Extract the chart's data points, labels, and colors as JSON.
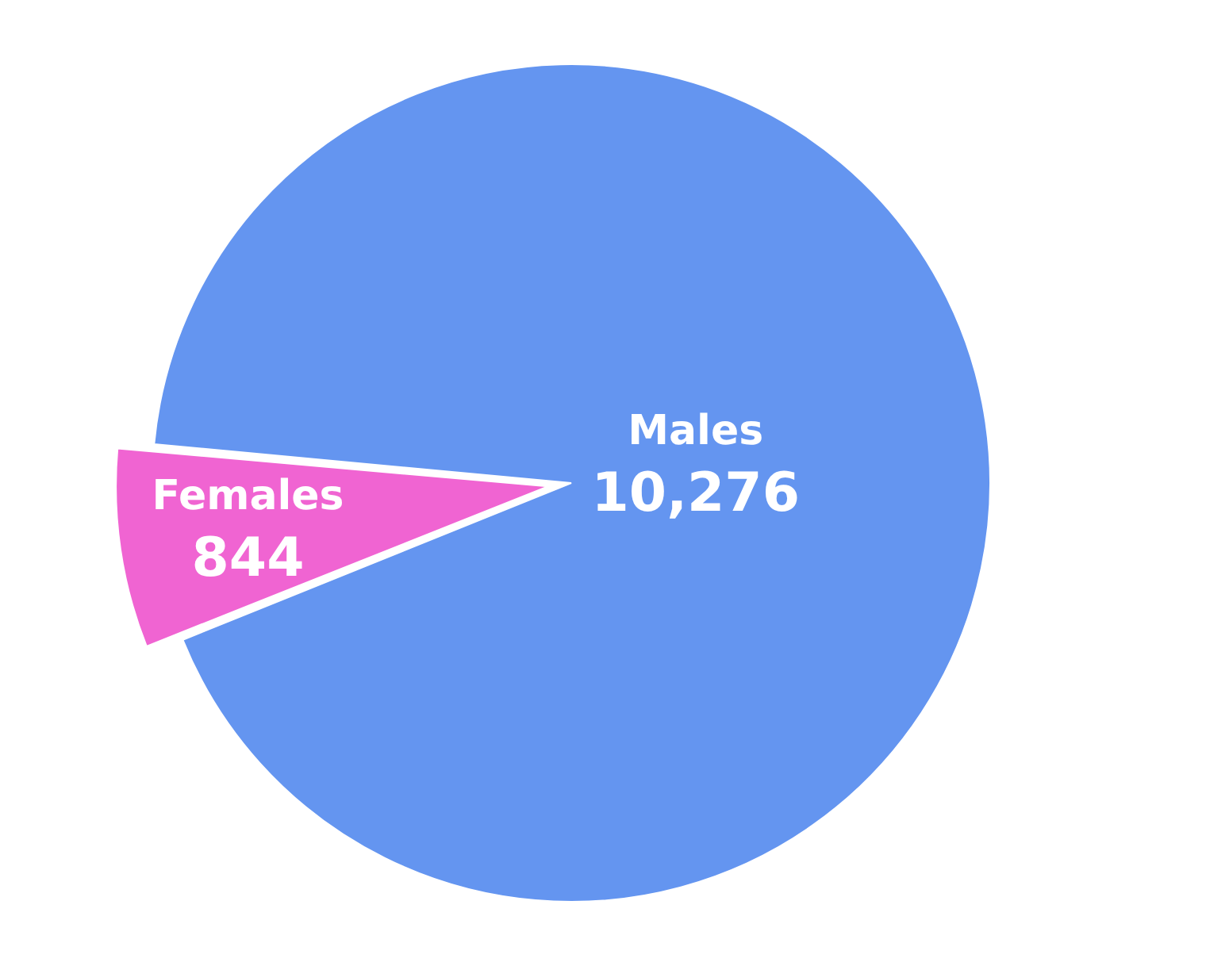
{
  "chart_data": {
    "type": "pie",
    "categories": [
      "Males",
      "Females"
    ],
    "values": [
      10276,
      844
    ],
    "value_labels": [
      "10,276",
      "844"
    ],
    "colors": [
      "#6495f0",
      "#f064d2"
    ],
    "legend": false
  }
}
